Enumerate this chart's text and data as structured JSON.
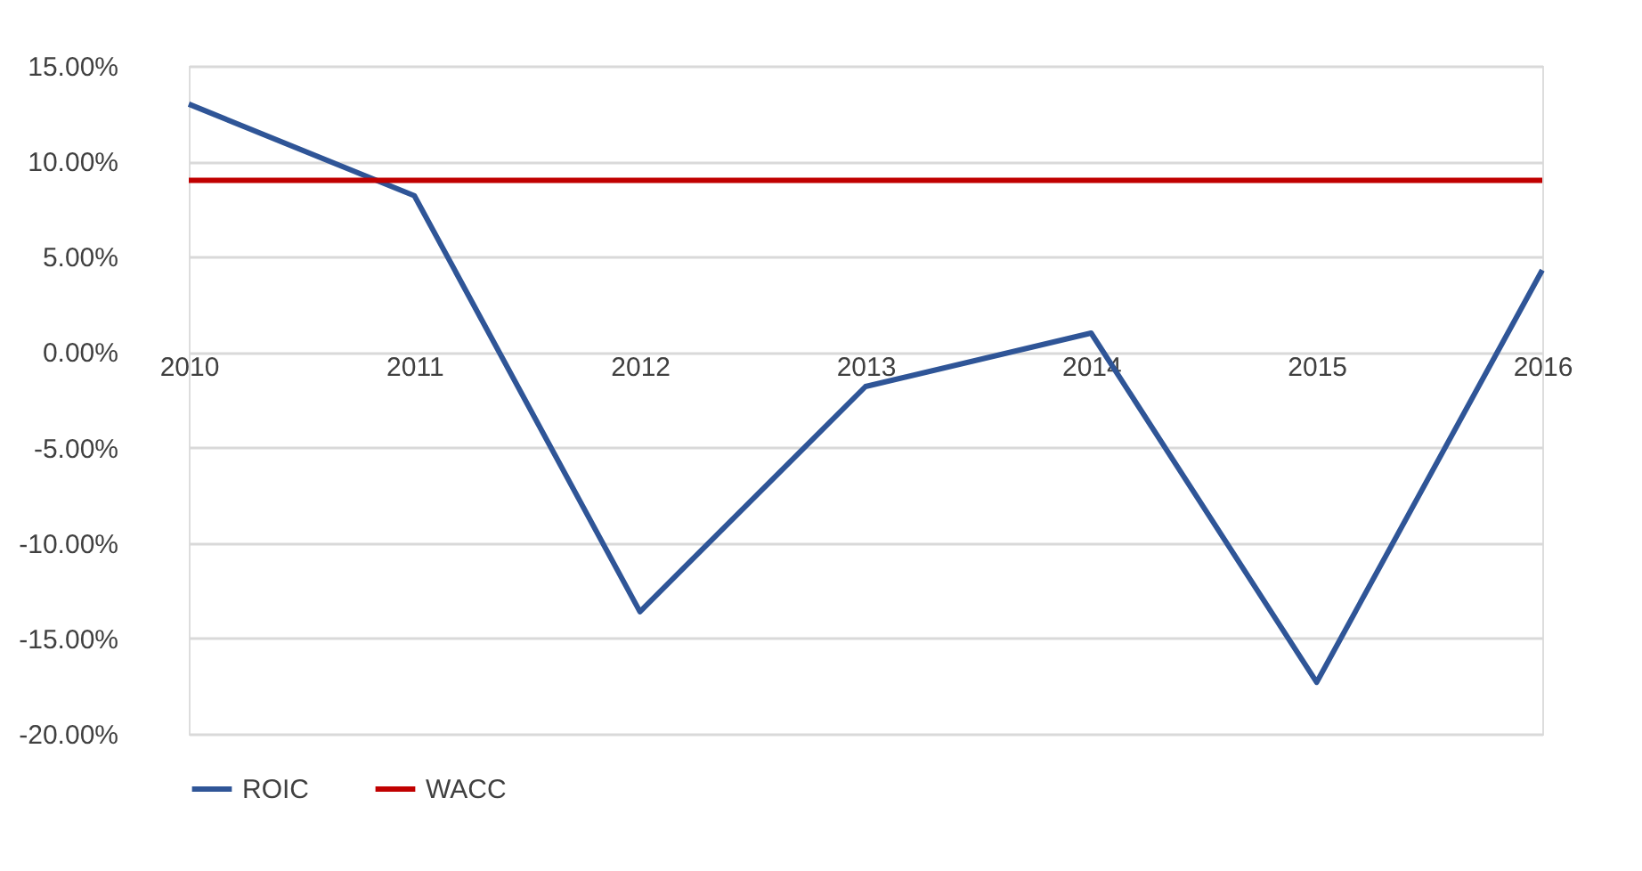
{
  "chart_data": {
    "type": "line",
    "categories": [
      "2010",
      "2011",
      "2012",
      "2013",
      "2014",
      "2015",
      "2016"
    ],
    "series": [
      {
        "name": "ROIC",
        "color": "#2f5597",
        "values": [
          13.0,
          8.2,
          -13.6,
          -1.8,
          1.0,
          -17.3,
          4.3
        ]
      },
      {
        "name": "WACC",
        "color": "#c00000",
        "values": [
          9.0,
          9.0,
          9.0,
          9.0,
          9.0,
          9.0,
          9.0
        ]
      }
    ],
    "ylim": [
      -20,
      15
    ],
    "yticks": [
      {
        "value": -20,
        "label": "-20.00%"
      },
      {
        "value": -15,
        "label": "-15.00%"
      },
      {
        "value": -10,
        "label": "-10.00%"
      },
      {
        "value": -5,
        "label": "-5.00%"
      },
      {
        "value": 0,
        "label": "0.00%"
      },
      {
        "value": 5,
        "label": "5.00%"
      },
      {
        "value": 10,
        "label": "10.00%"
      },
      {
        "value": 15,
        "label": "15.00%"
      }
    ],
    "grid": "y",
    "legend": "bottom",
    "marker": "none",
    "line_style": "solid"
  }
}
